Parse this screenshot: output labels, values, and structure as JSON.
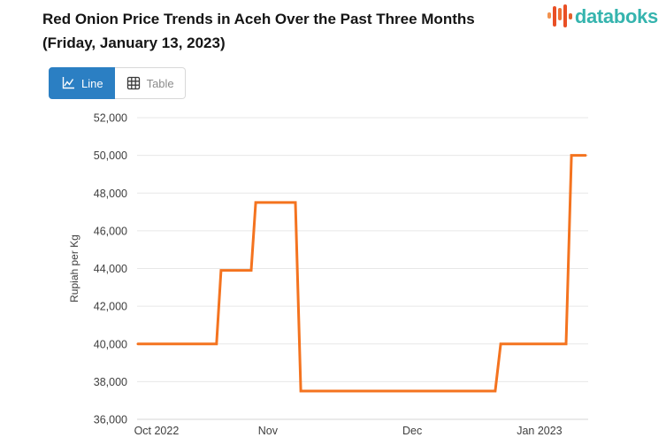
{
  "header": {
    "title_line1": "Red Onion Price Trends in Aceh Over the Past Three Months",
    "title_line2": "(Friday, January 13, 2023)",
    "logo_text": "databoks"
  },
  "toolbar": {
    "line_button_label": "Line",
    "table_button_label": "Table"
  },
  "colors": {
    "accent_blue": "#2b7fc3",
    "line_orange": "#f4731f",
    "logo_teal": "#35b4ae",
    "grid": "#e7e7e7",
    "axis_line": "#d6d6d6",
    "axis_text": "#3f3f3f"
  },
  "chart_data": {
    "type": "line",
    "title": "Red Onion Price Trends in Aceh Over the Past Three Months (Friday, January 13, 2023)",
    "ylabel": "Rupiah per Kg",
    "xlabel": "",
    "ylim": [
      36000,
      52000
    ],
    "grid": true,
    "legend": "none",
    "y_ticks": [
      {
        "value": 52000,
        "label": "52,000"
      },
      {
        "value": 50000,
        "label": "50,000"
      },
      {
        "value": 48000,
        "label": "48,000"
      },
      {
        "value": 46000,
        "label": "46,000"
      },
      {
        "value": 44000,
        "label": "44,000"
      },
      {
        "value": 42000,
        "label": "42,000"
      },
      {
        "value": 40000,
        "label": "40,000"
      },
      {
        "value": 38000,
        "label": "38,000"
      },
      {
        "value": 36000,
        "label": "36,000"
      }
    ],
    "x_ticks": [
      {
        "label": "Oct 2022",
        "pos": 0.043
      },
      {
        "label": "Nov",
        "pos": 0.29
      },
      {
        "label": "Dec",
        "pos": 0.61
      },
      {
        "label": "Jan 2023",
        "pos": 0.892
      }
    ],
    "series": [
      {
        "name": "Red onion price in Aceh (Rupiah per Kg)",
        "points": [
          {
            "date": "2022-10-13",
            "value": 40000,
            "t": 0.002
          },
          {
            "date": "2022-10-28",
            "value": 40000,
            "t": 0.176
          },
          {
            "date": "2022-10-29",
            "value": 43900,
            "t": 0.186
          },
          {
            "date": "2022-11-04",
            "value": 43900,
            "t": 0.253
          },
          {
            "date": "2022-11-05",
            "value": 47500,
            "t": 0.263
          },
          {
            "date": "2022-11-14",
            "value": 47500,
            "t": 0.351
          },
          {
            "date": "2022-11-15",
            "value": 37500,
            "t": 0.363
          },
          {
            "date": "2022-12-25",
            "value": 37500,
            "t": 0.794
          },
          {
            "date": "2022-12-26",
            "value": 40000,
            "t": 0.806
          },
          {
            "date": "2023-01-09",
            "value": 40000,
            "t": 0.951
          },
          {
            "date": "2023-01-10",
            "value": 50000,
            "t": 0.963
          },
          {
            "date": "2023-01-13",
            "value": 50000,
            "t": 0.994
          }
        ]
      }
    ]
  }
}
